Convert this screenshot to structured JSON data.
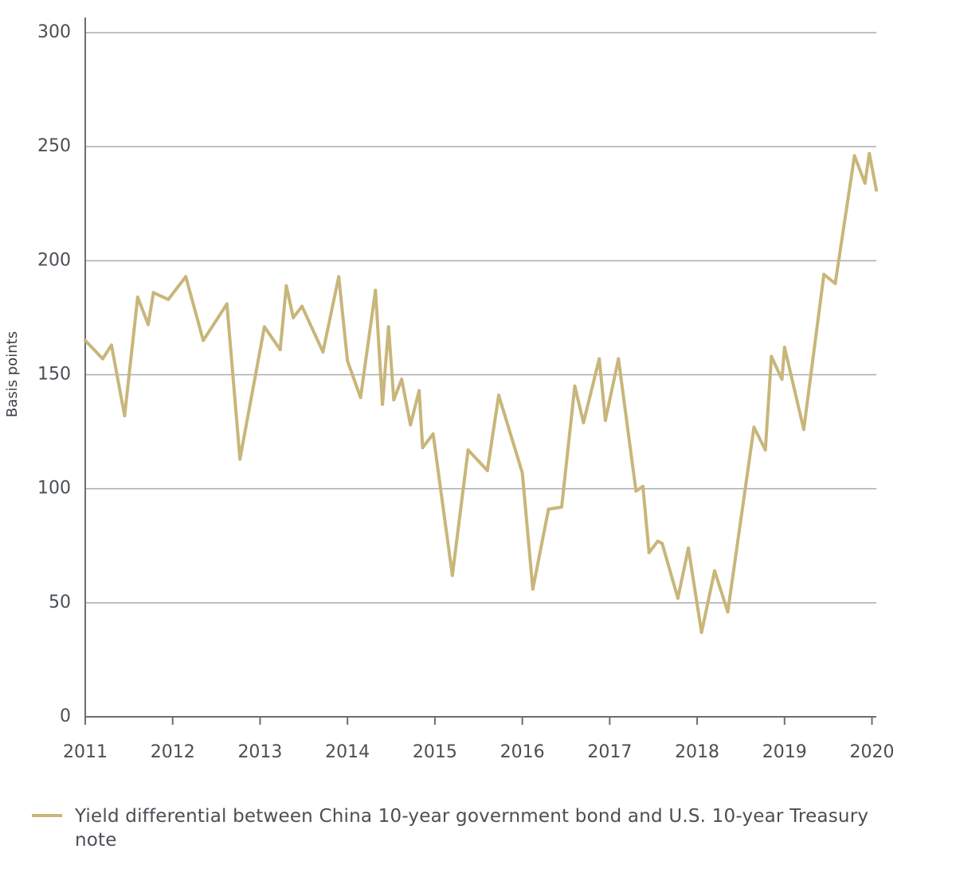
{
  "chart_data": {
    "type": "line",
    "ylabel": "Basis points",
    "xlabel": "",
    "ylim": [
      0,
      300
    ],
    "yticks": [
      0,
      50,
      100,
      150,
      200,
      250,
      300
    ],
    "xlim": [
      2011,
      2020.05
    ],
    "xticks": [
      "2011",
      "2012",
      "2013",
      "2014",
      "2015",
      "2016",
      "2017",
      "2018",
      "2019",
      "2020"
    ],
    "grid": "horizontal",
    "legend_position": "bottom-left",
    "line_color": "#c8b67a",
    "series": [
      {
        "name": "Yield differential between China 10-year government bond and U.S. 10-year Treasury note",
        "x": [
          2011.0,
          2011.2,
          2011.3,
          2011.45,
          2011.6,
          2011.72,
          2011.78,
          2011.95,
          2012.15,
          2012.35,
          2012.62,
          2012.77,
          2013.05,
          2013.23,
          2013.3,
          2013.38,
          2013.48,
          2013.72,
          2013.9,
          2014.0,
          2014.15,
          2014.32,
          2014.4,
          2014.47,
          2014.53,
          2014.62,
          2014.72,
          2014.82,
          2014.86,
          2014.98,
          2015.2,
          2015.38,
          2015.6,
          2015.73,
          2016.0,
          2016.12,
          2016.3,
          2016.45,
          2016.6,
          2016.7,
          2016.88,
          2016.95,
          2017.1,
          2017.3,
          2017.38,
          2017.45,
          2017.55,
          2017.6,
          2017.78,
          2017.9,
          2018.05,
          2018.2,
          2018.35,
          2018.65,
          2018.78,
          2018.85,
          2018.97,
          2019.0,
          2019.22,
          2019.45,
          2019.58,
          2019.8,
          2019.92,
          2019.97,
          2020.05
        ],
        "values": [
          165,
          157,
          163,
          132,
          184,
          172,
          186,
          183,
          193,
          165,
          181,
          113,
          171,
          161,
          189,
          175,
          180,
          160,
          193,
          156,
          140,
          187,
          137,
          171,
          139,
          148,
          128,
          143,
          118,
          124,
          62,
          117,
          108,
          141,
          107,
          56,
          91,
          92,
          145,
          129,
          157,
          130,
          157,
          99,
          101,
          72,
          77,
          76,
          52,
          74,
          37,
          64,
          46,
          127,
          117,
          158,
          148,
          162,
          126,
          194,
          190,
          246,
          234,
          247,
          231
        ]
      }
    ]
  },
  "legend": {
    "label": "Yield differential between China 10-year government bond and U.S. 10-year Treasury note"
  }
}
